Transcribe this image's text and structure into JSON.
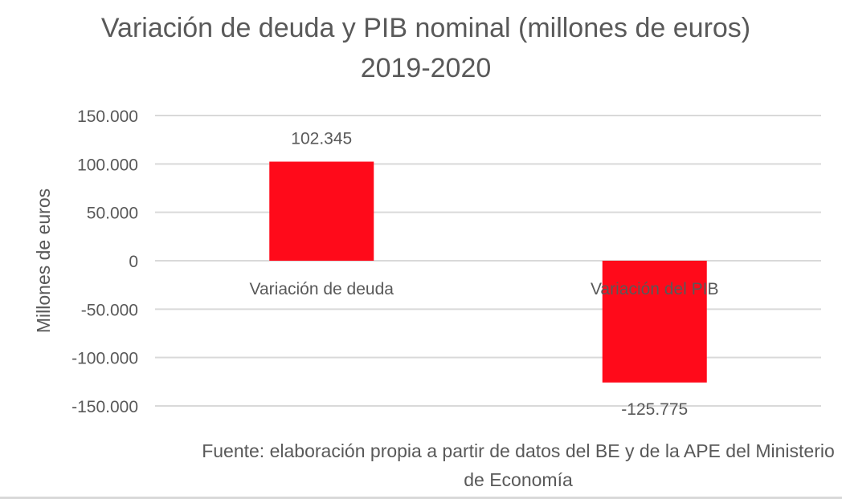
{
  "chart_data": {
    "type": "bar",
    "title": "Variación de deuda y PIB nominal (millones de euros) 2019-2020",
    "ylabel": "Millones de euros",
    "xlabel": "",
    "categories": [
      "Variación de deuda",
      "Variación del PIB"
    ],
    "values": [
      102345,
      -125775
    ],
    "value_labels": [
      "102.345",
      "-125.775"
    ],
    "ylim": [
      -150000,
      150000
    ],
    "yticks": [
      150000,
      100000,
      50000,
      0,
      -50000,
      -100000,
      -150000
    ],
    "ytick_labels": [
      "150.000",
      "100.000",
      "50.000",
      "0",
      "-50.000",
      "-100.000",
      "-150.000"
    ],
    "grid": true,
    "legend": "none",
    "bar_color": "#ff0a1a",
    "gridline_color": "#d9d9d9",
    "text_color": "#595959"
  },
  "source_note": "Fuente: elaboración propia a partir de datos del BE y de la APE del Ministerio de Economía"
}
